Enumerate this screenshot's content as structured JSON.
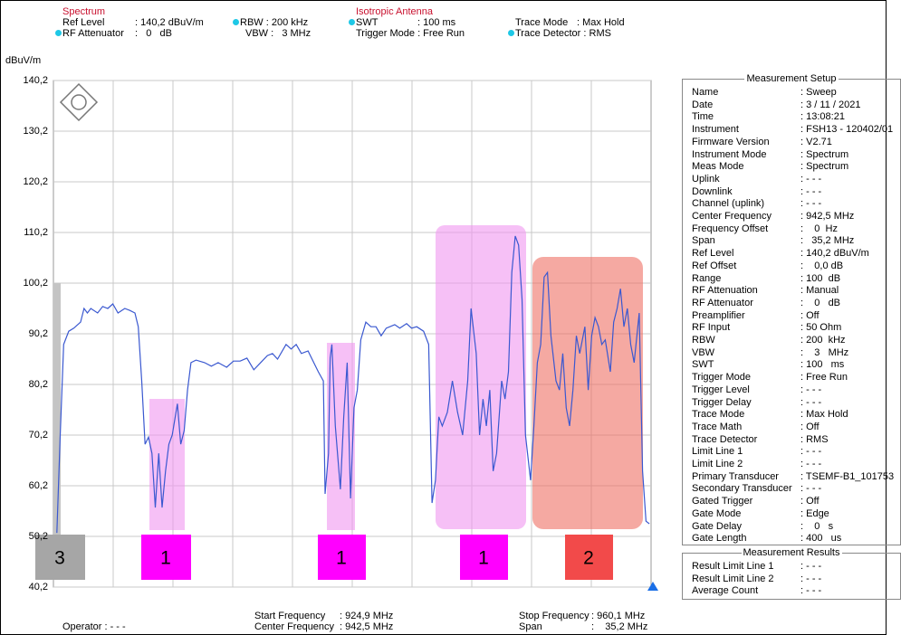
{
  "header": {
    "mode": "Spectrum",
    "antenna": "Isotropic Antenna",
    "ref_level": [
      "Ref Level",
      ": 140,2 dBuV/m"
    ],
    "rf_attenuator": [
      "RF Attenuator",
      ":   0   dB"
    ],
    "rbw": "RBW : 200 kHz",
    "vbw": "VBW :   3 MHz",
    "swt": [
      "SWT",
      ": 100 ms"
    ],
    "trigger_mode": "Trigger Mode : Free Run",
    "trace_mode": [
      "Trace Mode",
      ": Max Hold"
    ],
    "trace_detector": "Trace Detector : RMS"
  },
  "footer": {
    "operator": "Operator : - - -",
    "start": [
      "Start Frequency",
      ": 924,9 MHz"
    ],
    "center": [
      "Center Frequency",
      ": 942,5 MHz"
    ],
    "stop": [
      "Stop Frequency",
      ": 960,1 MHz"
    ],
    "span": [
      "Span",
      ":    35,2 MHz"
    ]
  },
  "setup": {
    "title": "Measurement Setup",
    "rows": [
      [
        "Name",
        ": Sweep"
      ],
      [
        "Date",
        ": 3 / 11 / 2021"
      ],
      [
        "Time",
        ": 13:08:21"
      ],
      [
        "Instrument",
        ": FSH13 - 120402/01"
      ],
      [
        "Firmware Version",
        ": V2.71"
      ],
      [
        "Instrument Mode",
        ": Spectrum"
      ],
      [
        "Meas Mode",
        ": Spectrum"
      ],
      [
        "Uplink",
        ": - - -"
      ],
      [
        "Downlink",
        ": - - -"
      ],
      [
        "Channel (uplink)",
        ": - - -"
      ],
      [
        "Center Frequency",
        ": 942,5 MHz"
      ],
      [
        "Frequency Offset",
        ":    0  Hz"
      ],
      [
        "Span",
        ":   35,2 MHz"
      ],
      [
        "Ref Level",
        ": 140,2 dBuV/m"
      ],
      [
        "Ref Offset",
        ":    0,0 dB"
      ],
      [
        "Range",
        ": 100  dB"
      ],
      [
        "RF Attenuation",
        ": Manual"
      ],
      [
        "RF Attenuator",
        ":    0   dB"
      ],
      [
        "Preamplifier",
        ": Off"
      ],
      [
        "RF Input",
        ": 50 Ohm"
      ],
      [
        "RBW",
        ": 200  kHz"
      ],
      [
        "VBW",
        ":    3   MHz"
      ],
      [
        "SWT",
        ": 100   ms"
      ],
      [
        "Trigger Mode",
        ": Free Run"
      ],
      [
        "Trigger Level",
        ": - - -"
      ],
      [
        "Trigger Delay",
        ": - - -"
      ],
      [
        "Trace Mode",
        ": Max Hold"
      ],
      [
        "Trace Math",
        ": Off"
      ],
      [
        "Trace Detector",
        ": RMS"
      ],
      [
        "Limit Line 1",
        ": - - -"
      ],
      [
        "Limit Line 2",
        ": - - -"
      ],
      [
        "Primary Transducer",
        ": TSEMF-B1_101753"
      ],
      [
        "Secondary Transducer",
        ": - - -"
      ],
      [
        "Gated Trigger",
        ": Off"
      ],
      [
        "Gate Mode",
        ": Edge"
      ],
      [
        "Gate Delay",
        ":    0   s"
      ],
      [
        "Gate Length",
        ": 400   us"
      ]
    ]
  },
  "results": {
    "title": "Measurement Results",
    "rows": [
      [
        "Result Limit Line 1",
        ": - - -"
      ],
      [
        "Result Limit Line 2",
        ": - - -"
      ],
      [
        "Average Count",
        ": - - -"
      ]
    ]
  },
  "chart_data": {
    "type": "line",
    "y_label": "dBuV/m",
    "color": "#3a58d0",
    "xlim": [
      924.9,
      960.1
    ],
    "ylim": [
      40.2,
      140.2
    ],
    "yticks": [
      {
        "value": 40.2,
        "label": "40,2"
      },
      {
        "value": 50.2,
        "label": "50,2"
      },
      {
        "value": 60.2,
        "label": "60,2"
      },
      {
        "value": 70.2,
        "label": "70,2"
      },
      {
        "value": 80.2,
        "label": "80,2"
      },
      {
        "value": 90.2,
        "label": "90,2"
      },
      {
        "value": 100.2,
        "label": "100,2"
      },
      {
        "value": 110.2,
        "label": "110,2"
      },
      {
        "value": 120.2,
        "label": "120,2"
      },
      {
        "value": 130.2,
        "label": "130,2"
      },
      {
        "value": 140.2,
        "label": "140,2"
      }
    ],
    "grid": true,
    "annotations": [
      "3",
      "1",
      "1",
      "1",
      "2"
    ],
    "x": [
      925.1,
      925.3,
      925.5,
      925.8,
      926.1,
      926.5,
      926.7,
      926.9,
      927.1,
      927.5,
      927.8,
      928.1,
      928.4,
      928.7,
      929.1,
      929.4,
      929.7,
      929.9,
      930.1,
      930.3,
      930.5,
      930.7,
      930.9,
      931.1,
      931.3,
      931.5,
      931.7,
      931.9,
      932.2,
      932.4,
      932.6,
      932.8,
      933.0,
      933.3,
      933.8,
      934.2,
      934.6,
      935.1,
      935.5,
      935.9,
      936.3,
      936.7,
      937.1,
      937.5,
      937.8,
      938.1,
      938.6,
      938.9,
      939.2,
      939.5,
      939.9,
      940.5,
      940.8,
      940.9,
      941.1,
      941.2,
      941.3,
      941.5,
      941.8,
      942.0,
      942.2,
      942.4,
      942.6,
      942.8,
      943.0,
      943.3,
      943.6,
      943.9,
      944.2,
      944.5,
      945.0,
      945.3,
      945.7,
      946.0,
      946.3,
      946.7,
      947.0,
      947.2,
      947.4,
      947.6,
      947.8,
      948.1,
      948.4,
      948.7,
      949.0,
      949.3,
      949.5,
      949.8,
      950.0,
      950.2,
      950.4,
      950.6,
      950.8,
      951.0,
      951.3,
      951.5,
      951.7,
      951.9,
      952.1,
      952.3,
      952.5,
      952.7,
      953.0,
      953.2,
      953.4,
      953.6,
      953.8,
      954.0,
      954.2,
      954.5,
      954.7,
      954.9,
      955.1,
      955.3,
      955.5,
      955.7,
      955.9,
      956.2,
      956.4,
      956.6,
      956.8,
      957.0,
      957.2,
      957.4,
      957.7,
      957.9,
      958.1,
      958.3,
      958.5,
      958.7,
      958.9,
      959.1,
      959.4,
      959.6,
      959.8,
      960.0
    ],
    "values": [
      50.9,
      70.2,
      88.1,
      90.7,
      91.3,
      92.5,
      95.2,
      94.3,
      95.2,
      94.3,
      95.6,
      95.2,
      96.1,
      94.3,
      95.2,
      94.8,
      94.3,
      91.6,
      80.9,
      68.4,
      69.8,
      66.6,
      55.9,
      66.6,
      55.9,
      63.1,
      68.4,
      70.2,
      76.4,
      68.4,
      71.1,
      79.1,
      84.5,
      85.0,
      84.5,
      83.8,
      84.5,
      83.6,
      84.8,
      84.8,
      85.4,
      83.1,
      84.5,
      85.9,
      86.3,
      85.2,
      88.1,
      87.2,
      88.1,
      86.3,
      86.8,
      82.7,
      80.9,
      58.6,
      66.6,
      85.4,
      88.1,
      72.0,
      59.5,
      73.8,
      84.5,
      57.7,
      75.6,
      79.1,
      89.0,
      92.5,
      91.6,
      91.6,
      89.8,
      91.3,
      92.0,
      91.3,
      92.2,
      91.3,
      91.6,
      90.7,
      88.1,
      56.8,
      61.3,
      73.8,
      72.0,
      74.7,
      80.9,
      74.7,
      70.2,
      80.9,
      95.2,
      86.3,
      70.2,
      77.3,
      72.0,
      79.1,
      63.1,
      66.6,
      80.9,
      77.3,
      82.7,
      102.3,
      109.5,
      107.7,
      97.0,
      70.2,
      61.3,
      72.0,
      84.5,
      88.1,
      101.4,
      102.3,
      89.8,
      80.9,
      79.1,
      86.3,
      75.6,
      72.0,
      79.1,
      89.8,
      86.3,
      91.6,
      79.1,
      89.8,
      93.4,
      91.6,
      88.1,
      89.0,
      82.7,
      92.5,
      95.2,
      99.1,
      91.6,
      95.2,
      88.1,
      84.5,
      94.3,
      63.1,
      53.2,
      52.7
    ]
  }
}
